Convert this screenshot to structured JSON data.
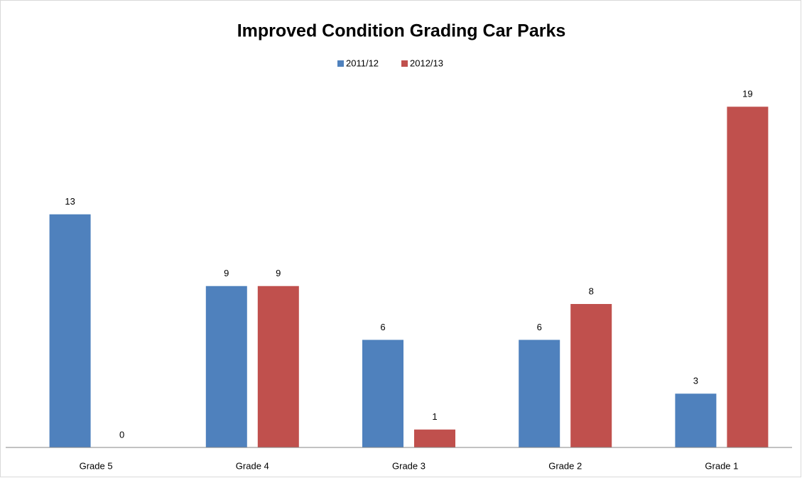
{
  "chart_data": {
    "type": "bar",
    "title": "Improved Condition Grading Car Parks",
    "categories": [
      "Grade 5",
      "Grade 4",
      "Grade 3",
      "Grade 2",
      "Grade 1"
    ],
    "series": [
      {
        "name": "2011/12",
        "color": "#4f81bd",
        "values": [
          13,
          9,
          6,
          6,
          3
        ]
      },
      {
        "name": "2012/13",
        "color": "#c0504d",
        "values": [
          0,
          9,
          1,
          8,
          19
        ]
      }
    ],
    "ylim": [
      0,
      20
    ],
    "legend": "top"
  }
}
